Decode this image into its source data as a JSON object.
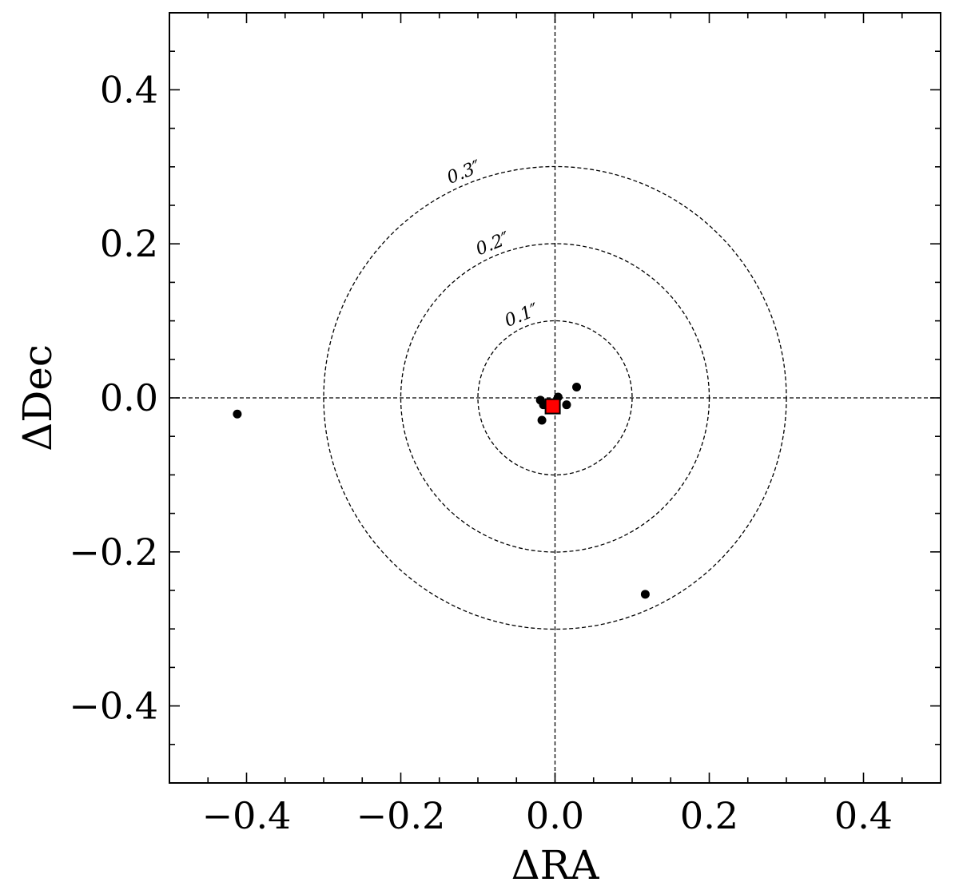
{
  "chart_data": {
    "type": "scatter",
    "title": "",
    "xlabel": "ΔRA",
    "ylabel": "ΔDec",
    "xlim": [
      -0.5,
      0.5
    ],
    "ylim": [
      -0.5,
      0.5
    ],
    "xticks": [
      {
        "value": -0.4,
        "label": "−0.4"
      },
      {
        "value": -0.2,
        "label": "−0.2"
      },
      {
        "value": 0.0,
        "label": "0.0"
      },
      {
        "value": 0.2,
        "label": "0.2"
      },
      {
        "value": 0.4,
        "label": "0.4"
      }
    ],
    "yticks": [
      {
        "value": 0.4,
        "label": "0.4"
      },
      {
        "value": 0.2,
        "label": "0.2"
      },
      {
        "value": 0.0,
        "label": "0.0"
      },
      {
        "value": -0.2,
        "label": "−0.2"
      },
      {
        "value": -0.4,
        "label": "−0.4"
      }
    ],
    "minor_tick_step": 0.05,
    "grid": false,
    "reference_lines": {
      "x": 0.0,
      "y": 0.0,
      "style": "dashed"
    },
    "circles": [
      {
        "radius": 0.1,
        "label": "0.1″"
      },
      {
        "radius": 0.2,
        "label": "0.2″"
      },
      {
        "radius": 0.3,
        "label": "0.3″"
      }
    ],
    "points": [
      {
        "x": -0.412,
        "y": -0.021
      },
      {
        "x": -0.019,
        "y": -0.003
      },
      {
        "x": -0.015,
        "y": -0.009
      },
      {
        "x": -0.017,
        "y": -0.029
      },
      {
        "x": 0.004,
        "y": 0.001
      },
      {
        "x": 0.015,
        "y": -0.009
      },
      {
        "x": 0.028,
        "y": 0.014
      },
      {
        "x": 0.117,
        "y": -0.255
      }
    ],
    "points_color": "#000000",
    "marker_square": {
      "x": -0.003,
      "y": -0.011,
      "color": "#ff0000",
      "edge": "#000000"
    }
  }
}
